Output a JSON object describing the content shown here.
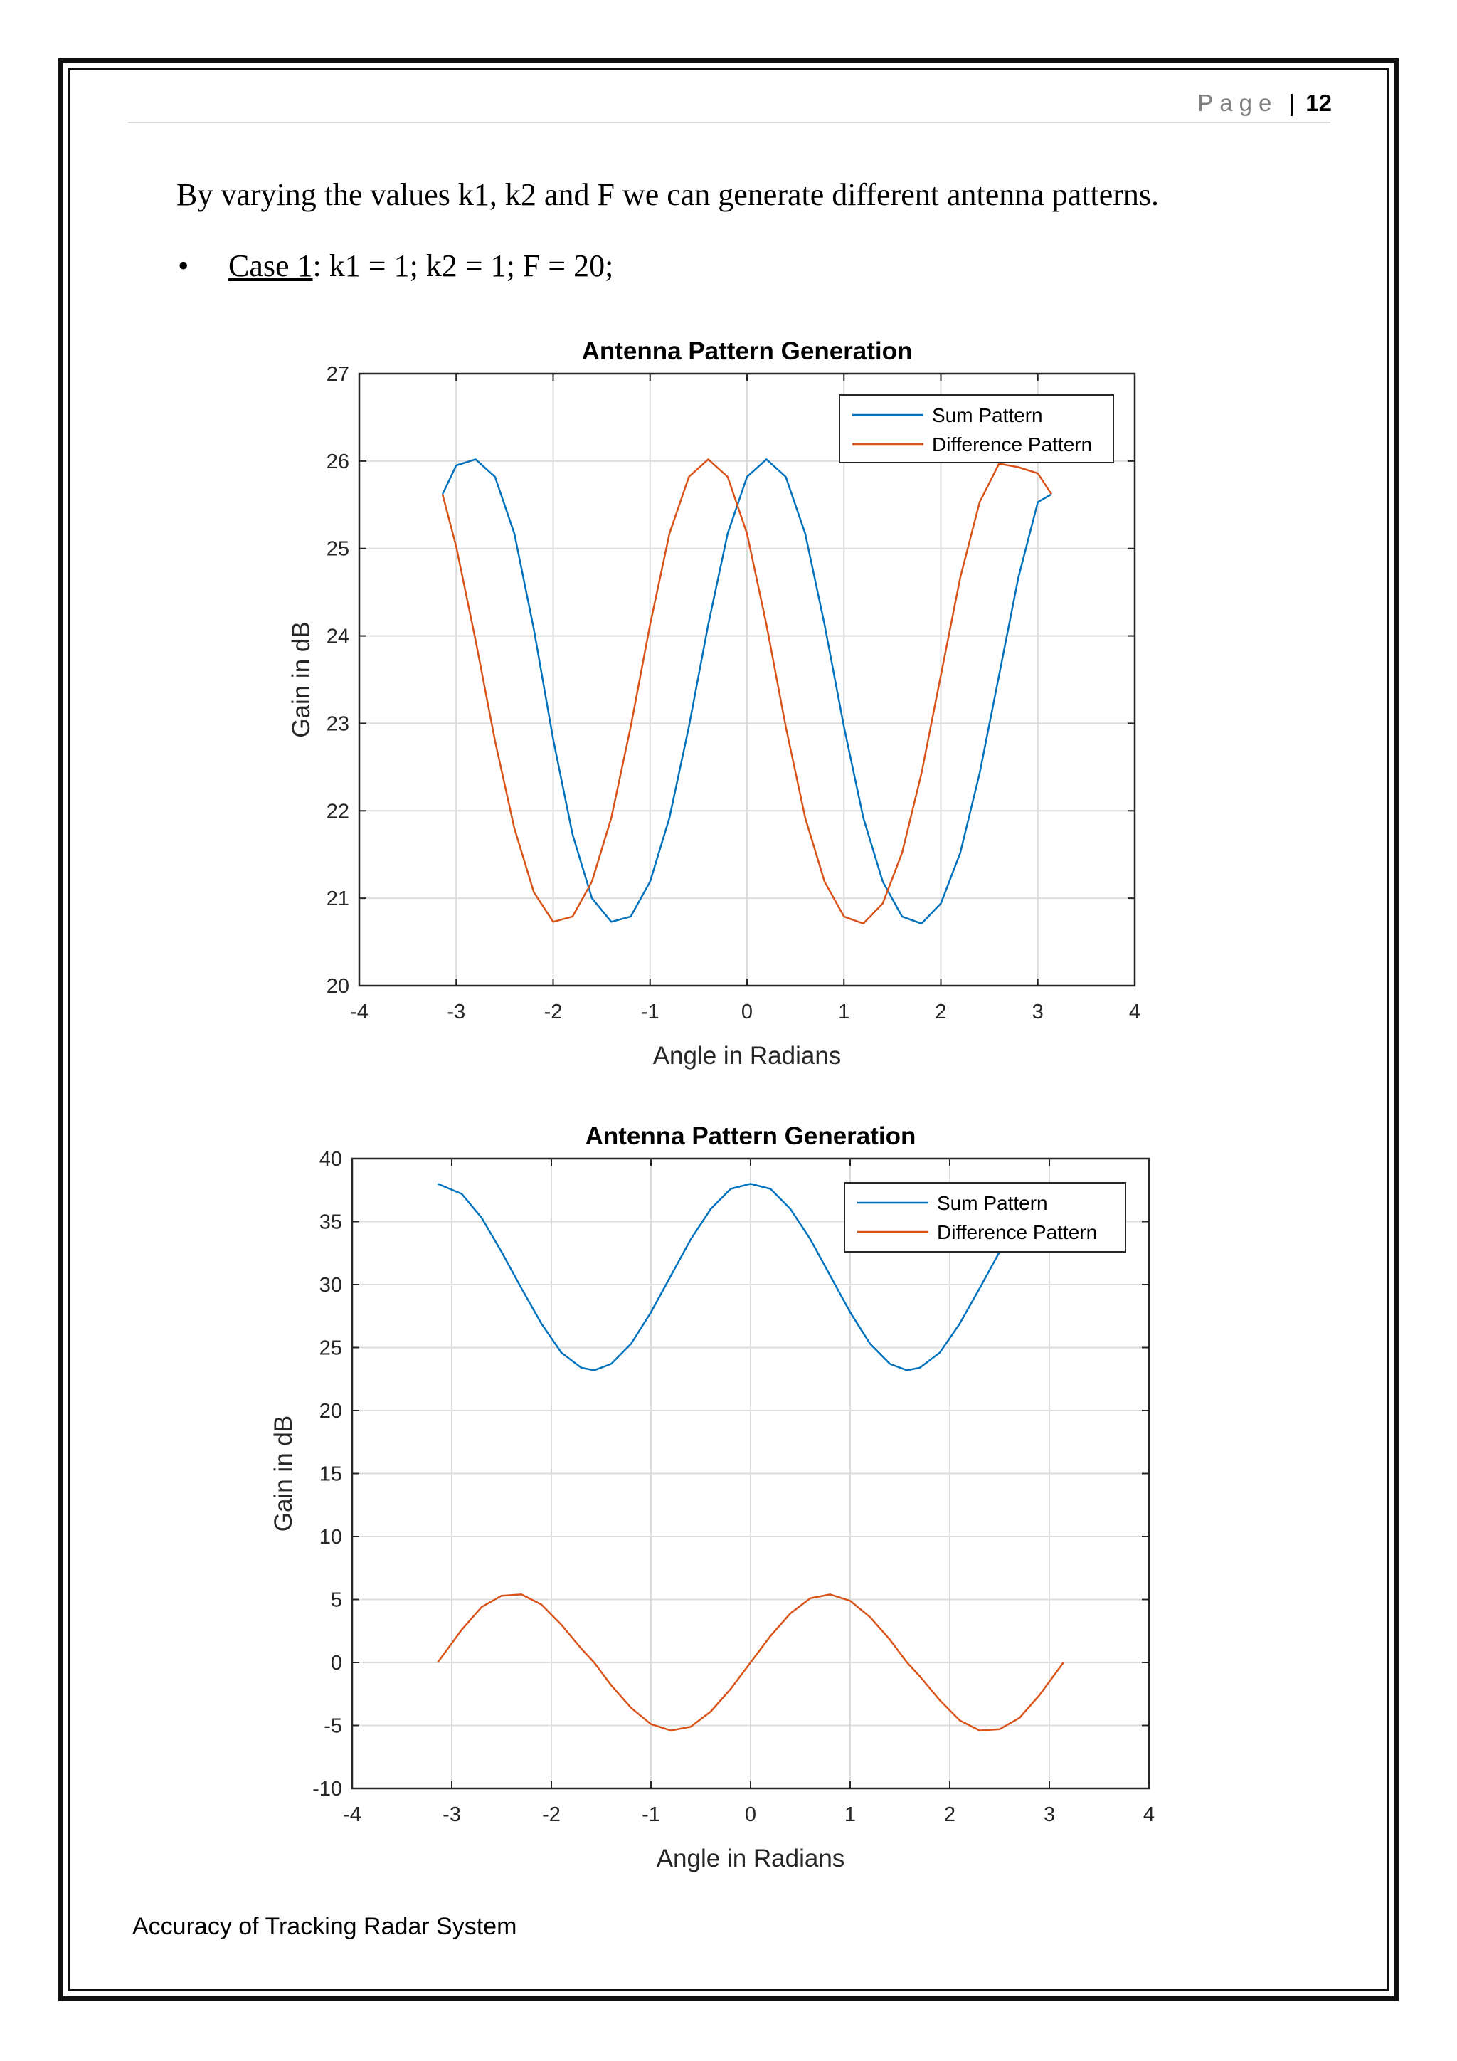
{
  "header": {
    "page_word": "Page",
    "separator": "|",
    "page_number": "12"
  },
  "body": {
    "intro_text": "By varying the values k1, k2 and F we can generate different antenna patterns.",
    "bullet": "•",
    "case_name": "Case 1",
    "case_params": ": k1 = 1; k2 = 1; F = 20;"
  },
  "footer": {
    "text": "Accuracy of Tracking Radar System"
  },
  "colors": {
    "sum": "#0072bd",
    "difference": "#d95319",
    "grid": "#dcdcdc",
    "axis": "#262626"
  },
  "chart_data": [
    {
      "type": "line",
      "title": "Antenna Pattern Generation",
      "xlabel": "Angle in Radians",
      "ylabel": "Gain in dB",
      "xlim": [
        -4,
        4
      ],
      "ylim": [
        20,
        27
      ],
      "xticks": [
        -4,
        -3,
        -2,
        -1,
        0,
        1,
        2,
        3,
        4
      ],
      "yticks": [
        20,
        21,
        22,
        23,
        24,
        25,
        26,
        27
      ],
      "xtick_labels": [
        "-4",
        "-3",
        "-2",
        "-1",
        "0",
        "1",
        "2",
        "3",
        "4"
      ],
      "ytick_labels": [
        "20",
        "21",
        "22",
        "23",
        "24",
        "25",
        "26",
        "27"
      ],
      "grid": true,
      "legend_position": "top-right",
      "x": [
        -3.1416,
        -3.0,
        -2.8,
        -2.6,
        -2.4,
        -2.2,
        -2.0,
        -1.8,
        -1.6,
        -1.4,
        -1.2,
        -1.0,
        -0.8,
        -0.6,
        -0.4,
        -0.2,
        0.0,
        0.2,
        0.4,
        0.6,
        0.8,
        1.0,
        1.2,
        1.4,
        1.6,
        1.8,
        2.0,
        2.2,
        2.4,
        2.6,
        2.8,
        3.0,
        3.1416
      ],
      "series": [
        {
          "name": "Sum Pattern",
          "values": [
            25.62,
            25.95,
            26.02,
            25.82,
            25.17,
            24.08,
            22.82,
            21.73,
            21.0,
            20.73,
            20.79,
            21.19,
            21.92,
            22.96,
            24.13,
            25.17,
            25.82,
            26.02,
            25.82,
            25.17,
            24.13,
            22.96,
            21.92,
            21.19,
            20.79,
            20.71,
            20.94,
            21.52,
            22.43,
            23.55,
            24.67,
            25.53,
            25.62
          ]
        },
        {
          "name": "Difference Pattern",
          "values": [
            25.62,
            25.02,
            23.95,
            22.8,
            21.8,
            21.07,
            20.73,
            20.79,
            21.19,
            21.92,
            22.96,
            24.13,
            25.17,
            25.82,
            26.02,
            25.82,
            25.17,
            24.13,
            22.96,
            21.92,
            21.19,
            20.79,
            20.71,
            20.94,
            21.52,
            22.43,
            23.55,
            24.67,
            25.53,
            25.97,
            25.93,
            25.86,
            25.62
          ]
        }
      ]
    },
    {
      "type": "line",
      "title": "Antenna Pattern Generation",
      "xlabel": "Angle in Radians",
      "ylabel": "Gain in dB",
      "xlim": [
        -4,
        4
      ],
      "ylim": [
        -10,
        40
      ],
      "xticks": [
        -4,
        -3,
        -2,
        -1,
        0,
        1,
        2,
        3,
        4
      ],
      "yticks": [
        -10,
        -5,
        0,
        5,
        10,
        15,
        20,
        25,
        30,
        35,
        40
      ],
      "xtick_labels": [
        "-4",
        "-3",
        "-2",
        "-1",
        "0",
        "1",
        "2",
        "3",
        "4"
      ],
      "ytick_labels": [
        "-10",
        "-5",
        "0",
        "5",
        "10",
        "15",
        "20",
        "25",
        "30",
        "35",
        "40"
      ],
      "grid": true,
      "legend_position": "top-right",
      "x": [
        -3.1416,
        -2.9,
        -2.7,
        -2.5,
        -2.3,
        -2.1,
        -1.9,
        -1.7,
        -1.5708,
        -1.4,
        -1.2,
        -1.0,
        -0.8,
        -0.6,
        -0.4,
        -0.2,
        0.0,
        0.2,
        0.4,
        0.6,
        0.8,
        1.0,
        1.2,
        1.4,
        1.5708,
        1.7,
        1.9,
        2.1,
        2.3,
        2.5,
        2.7,
        2.9,
        3.1416
      ],
      "series": [
        {
          "name": "Sum Pattern",
          "values": [
            38.0,
            37.2,
            35.3,
            32.6,
            29.7,
            26.9,
            24.6,
            23.4,
            23.2,
            23.7,
            25.3,
            27.8,
            30.7,
            33.6,
            36.0,
            37.6,
            38.0,
            37.6,
            36.0,
            33.6,
            30.7,
            27.8,
            25.3,
            23.7,
            23.2,
            23.4,
            24.6,
            26.9,
            29.7,
            32.6,
            35.3,
            37.2,
            38.0
          ]
        },
        {
          "name": "Difference Pattern",
          "values": [
            0.0,
            2.6,
            4.4,
            5.3,
            5.4,
            4.6,
            3.0,
            1.1,
            0.0,
            -1.8,
            -3.6,
            -4.9,
            -5.4,
            -5.1,
            -3.9,
            -2.1,
            0.0,
            2.1,
            3.9,
            5.1,
            5.4,
            4.9,
            3.6,
            1.8,
            0.0,
            -1.1,
            -3.0,
            -4.6,
            -5.4,
            -5.3,
            -4.4,
            -2.6,
            0.0
          ]
        }
      ]
    }
  ]
}
